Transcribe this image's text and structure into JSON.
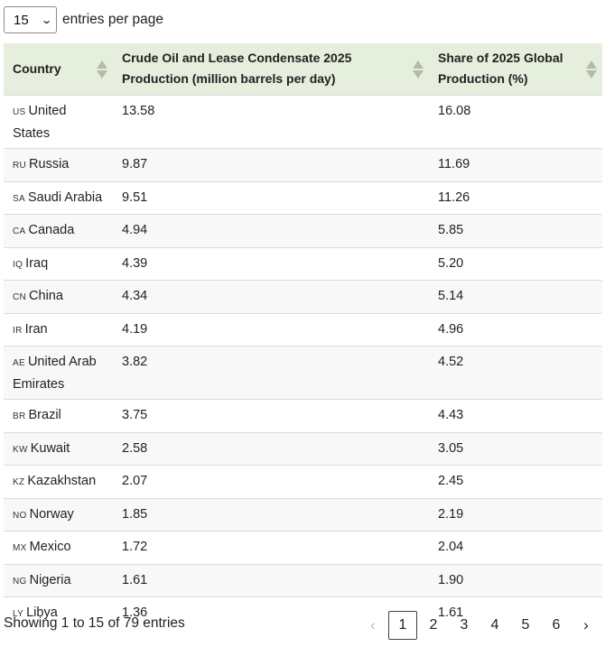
{
  "length_control": {
    "selected": "15",
    "label": "entries per page",
    "chevron_icon": "⌄"
  },
  "table": {
    "columns": [
      {
        "label": "Country"
      },
      {
        "label": "Crude Oil and Lease Condensate 2025 Production (million barrels per day)"
      },
      {
        "label": "Share of 2025 Global Production (%)"
      }
    ],
    "rows": [
      {
        "code": "us",
        "country": "United States",
        "production": "13.58",
        "share": "16.08"
      },
      {
        "code": "ru",
        "country": "Russia",
        "production": "9.87",
        "share": "11.69"
      },
      {
        "code": "sa",
        "country": "Saudi Arabia",
        "production": "9.51",
        "share": "11.26"
      },
      {
        "code": "ca",
        "country": "Canada",
        "production": "4.94",
        "share": "5.85"
      },
      {
        "code": "iq",
        "country": "Iraq",
        "production": "4.39",
        "share": "5.20"
      },
      {
        "code": "cn",
        "country": "China",
        "production": "4.34",
        "share": "5.14"
      },
      {
        "code": "ir",
        "country": "Iran",
        "production": "4.19",
        "share": "4.96"
      },
      {
        "code": "ae",
        "country": "United Arab Emirates",
        "production": "3.82",
        "share": "4.52"
      },
      {
        "code": "br",
        "country": "Brazil",
        "production": "3.75",
        "share": "4.43"
      },
      {
        "code": "kw",
        "country": "Kuwait",
        "production": "2.58",
        "share": "3.05"
      },
      {
        "code": "kz",
        "country": "Kazakhstan",
        "production": "2.07",
        "share": "2.45"
      },
      {
        "code": "no",
        "country": "Norway",
        "production": "1.85",
        "share": "2.19"
      },
      {
        "code": "mx",
        "country": "Mexico",
        "production": "1.72",
        "share": "2.04"
      },
      {
        "code": "ng",
        "country": "Nigeria",
        "production": "1.61",
        "share": "1.90"
      },
      {
        "code": "ly",
        "country": "Libya",
        "production": "1.36",
        "share": "1.61"
      }
    ]
  },
  "footer": {
    "info": "Showing 1 to 15 of 79 entries",
    "pagination": {
      "prev": "‹",
      "next": "›",
      "pages": [
        "1",
        "2",
        "3",
        "4",
        "5",
        "6"
      ],
      "current": "1"
    }
  },
  "colors": {
    "header_bg": "#e6eedd",
    "stripe_bg": "#f8f8f8",
    "border": "#dcdcdc",
    "sort_icon": "#b3bbaa"
  }
}
